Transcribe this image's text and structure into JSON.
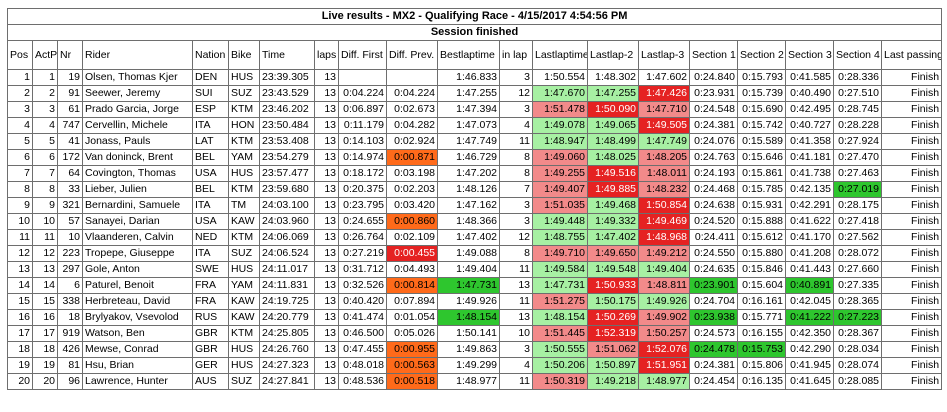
{
  "title": "Live results - MX2 - Qualifying Race - 4/15/2017 4:54:56 PM",
  "status": "Session finished",
  "columns": [
    "Pos",
    "ActP",
    "Nr",
    "Rider",
    "Nation",
    "Bike",
    "Time",
    "laps",
    "Diff. First",
    "Diff. Prev.",
    "Bestlaptime",
    "in lap",
    "Lastlaptime",
    "Lastlap-2",
    "Lastlap-3",
    "Section 1",
    "Section 2",
    "Section 3",
    "Section 4",
    "Last passing"
  ],
  "colors": {
    "light_green": "#a7f0a3",
    "dark_green": "#2ec62e",
    "light_red": "#f28a8a",
    "dark_red": "#e52222",
    "orange": "#ff6a1a",
    "border": "#6e6e6e"
  },
  "rows": [
    {
      "pos": "1",
      "actp": "1",
      "nr": "19",
      "rider": "Olsen, Thomas Kjer",
      "nation": "DEN",
      "bike": "HUS",
      "time": "23:39.305",
      "laps": "13",
      "diff_first": "",
      "diff_prev": "",
      "bestlap": "1:46.833",
      "inlap": "3",
      "lastlap": "1:50.554",
      "lastlap2": "1:48.302",
      "lastlap3": "1:47.602",
      "s1": "0:24.840",
      "s2": "0:15.793",
      "s3": "0:41.585",
      "s4": "0:28.336",
      "last": "Finish",
      "hl": {}
    },
    {
      "pos": "2",
      "actp": "2",
      "nr": "91",
      "rider": "Seewer, Jeremy",
      "nation": "SUI",
      "bike": "SUZ",
      "time": "23:43.529",
      "laps": "13",
      "diff_first": "0:04.224",
      "diff_prev": "0:04.224",
      "bestlap": "1:47.255",
      "inlap": "12",
      "lastlap": "1:47.670",
      "lastlap2": "1:47.255",
      "lastlap3": "1:47.426",
      "s1": "0:23.931",
      "s2": "0:15.739",
      "s3": "0:40.490",
      "s4": "0:27.510",
      "last": "Finish",
      "hl": {
        "lastlap": "lg",
        "lastlap2": "lg",
        "lastlap3": "dr"
      }
    },
    {
      "pos": "3",
      "actp": "3",
      "nr": "61",
      "rider": "Prado Garcia, Jorge",
      "nation": "ESP",
      "bike": "KTM",
      "time": "23:46.202",
      "laps": "13",
      "diff_first": "0:06.897",
      "diff_prev": "0:02.673",
      "bestlap": "1:47.394",
      "inlap": "3",
      "lastlap": "1:51.478",
      "lastlap2": "1:50.090",
      "lastlap3": "1:47.710",
      "s1": "0:24.548",
      "s2": "0:15.690",
      "s3": "0:42.495",
      "s4": "0:28.745",
      "last": "Finish",
      "hl": {
        "lastlap": "lr",
        "lastlap2": "dr",
        "lastlap3": "lr"
      }
    },
    {
      "pos": "4",
      "actp": "4",
      "nr": "747",
      "rider": "Cervellin, Michele",
      "nation": "ITA",
      "bike": "HON",
      "time": "23:50.484",
      "laps": "13",
      "diff_first": "0:11.179",
      "diff_prev": "0:04.282",
      "bestlap": "1:47.073",
      "inlap": "4",
      "lastlap": "1:49.078",
      "lastlap2": "1:49.065",
      "lastlap3": "1:49.505",
      "s1": "0:24.381",
      "s2": "0:15.742",
      "s3": "0:40.727",
      "s4": "0:28.228",
      "last": "Finish",
      "hl": {
        "lastlap": "lg",
        "lastlap2": "lg",
        "lastlap3": "dr"
      }
    },
    {
      "pos": "5",
      "actp": "5",
      "nr": "41",
      "rider": "Jonass, Pauls",
      "nation": "LAT",
      "bike": "KTM",
      "time": "23:53.408",
      "laps": "13",
      "diff_first": "0:14.103",
      "diff_prev": "0:02.924",
      "bestlap": "1:47.749",
      "inlap": "11",
      "lastlap": "1:48.947",
      "lastlap2": "1:48.499",
      "lastlap3": "1:47.749",
      "s1": "0:24.076",
      "s2": "0:15.589",
      "s3": "0:41.358",
      "s4": "0:27.924",
      "last": "Finish",
      "hl": {
        "lastlap": "lg",
        "lastlap2": "lg",
        "lastlap3": "lg"
      }
    },
    {
      "pos": "6",
      "actp": "6",
      "nr": "172",
      "rider": "Van doninck, Brent",
      "nation": "BEL",
      "bike": "YAM",
      "time": "23:54.279",
      "laps": "13",
      "diff_first": "0:14.974",
      "diff_prev": "0:00.871",
      "bestlap": "1:46.729",
      "inlap": "8",
      "lastlap": "1:49.060",
      "lastlap2": "1:48.025",
      "lastlap3": "1:48.205",
      "s1": "0:24.763",
      "s2": "0:15.646",
      "s3": "0:41.181",
      "s4": "0:27.470",
      "last": "Finish",
      "hl": {
        "diff_prev": "or",
        "lastlap": "lr",
        "lastlap2": "lg",
        "lastlap3": "lr"
      }
    },
    {
      "pos": "7",
      "actp": "7",
      "nr": "64",
      "rider": "Covington, Thomas",
      "nation": "USA",
      "bike": "HUS",
      "time": "23:57.477",
      "laps": "13",
      "diff_first": "0:18.172",
      "diff_prev": "0:03.198",
      "bestlap": "1:47.202",
      "inlap": "8",
      "lastlap": "1:49.255",
      "lastlap2": "1:49.516",
      "lastlap3": "1:48.011",
      "s1": "0:24.193",
      "s2": "0:15.861",
      "s3": "0:41.738",
      "s4": "0:27.463",
      "last": "Finish",
      "hl": {
        "lastlap": "lr",
        "lastlap2": "dr",
        "lastlap3": "lr"
      }
    },
    {
      "pos": "8",
      "actp": "8",
      "nr": "33",
      "rider": "Lieber, Julien",
      "nation": "BEL",
      "bike": "KTM",
      "time": "23:59.680",
      "laps": "13",
      "diff_first": "0:20.375",
      "diff_prev": "0:02.203",
      "bestlap": "1:48.126",
      "inlap": "7",
      "lastlap": "1:49.407",
      "lastlap2": "1:49.885",
      "lastlap3": "1:48.232",
      "s1": "0:24.468",
      "s2": "0:15.785",
      "s3": "0:42.135",
      "s4": "0:27.019",
      "last": "Finish",
      "hl": {
        "lastlap": "lr",
        "lastlap2": "dr",
        "lastlap3": "lr",
        "s4": "dg"
      }
    },
    {
      "pos": "9",
      "actp": "9",
      "nr": "321",
      "rider": "Bernardini, Samuele",
      "nation": "ITA",
      "bike": "TM",
      "time": "24:03.100",
      "laps": "13",
      "diff_first": "0:23.795",
      "diff_prev": "0:03.420",
      "bestlap": "1:47.162",
      "inlap": "3",
      "lastlap": "1:51.035",
      "lastlap2": "1:49.468",
      "lastlap3": "1:50.854",
      "s1": "0:24.638",
      "s2": "0:15.931",
      "s3": "0:42.291",
      "s4": "0:28.175",
      "last": "Finish",
      "hl": {
        "lastlap": "lr",
        "lastlap2": "lg",
        "lastlap3": "dr"
      }
    },
    {
      "pos": "10",
      "actp": "10",
      "nr": "57",
      "rider": "Sanayei, Darian",
      "nation": "USA",
      "bike": "KAW",
      "time": "24:03.960",
      "laps": "13",
      "diff_first": "0:24.655",
      "diff_prev": "0:00.860",
      "bestlap": "1:48.366",
      "inlap": "3",
      "lastlap": "1:49.448",
      "lastlap2": "1:49.332",
      "lastlap3": "1:49.469",
      "s1": "0:24.520",
      "s2": "0:15.888",
      "s3": "0:41.622",
      "s4": "0:27.418",
      "last": "Finish",
      "hl": {
        "diff_prev": "or",
        "lastlap": "lg",
        "lastlap2": "lg",
        "lastlap3": "dr"
      }
    },
    {
      "pos": "11",
      "actp": "11",
      "nr": "10",
      "rider": "Vlaanderen, Calvin",
      "nation": "NED",
      "bike": "KTM",
      "time": "24:06.069",
      "laps": "13",
      "diff_first": "0:26.764",
      "diff_prev": "0:02.109",
      "bestlap": "1:47.402",
      "inlap": "12",
      "lastlap": "1:48.755",
      "lastlap2": "1:47.402",
      "lastlap3": "1:48.968",
      "s1": "0:24.411",
      "s2": "0:15.612",
      "s3": "0:41.170",
      "s4": "0:27.562",
      "last": "Finish",
      "hl": {
        "lastlap": "lg",
        "lastlap2": "lg",
        "lastlap3": "dr"
      }
    },
    {
      "pos": "12",
      "actp": "12",
      "nr": "223",
      "rider": "Tropepe, Giuseppe",
      "nation": "ITA",
      "bike": "SUZ",
      "time": "24:06.524",
      "laps": "13",
      "diff_first": "0:27.219",
      "diff_prev": "0:00.455",
      "bestlap": "1:49.088",
      "inlap": "8",
      "lastlap": "1:49.710",
      "lastlap2": "1:49.650",
      "lastlap3": "1:49.212",
      "s1": "0:24.550",
      "s2": "0:15.880",
      "s3": "0:41.208",
      "s4": "0:28.072",
      "last": "Finish",
      "hl": {
        "diff_prev": "dr",
        "lastlap": "lr",
        "lastlap2": "lr",
        "lastlap3": "lr"
      }
    },
    {
      "pos": "13",
      "actp": "13",
      "nr": "297",
      "rider": "Gole, Anton",
      "nation": "SWE",
      "bike": "HUS",
      "time": "24:11.017",
      "laps": "13",
      "diff_first": "0:31.712",
      "diff_prev": "0:04.493",
      "bestlap": "1:49.404",
      "inlap": "11",
      "lastlap": "1:49.584",
      "lastlap2": "1:49.548",
      "lastlap3": "1:49.404",
      "s1": "0:24.635",
      "s2": "0:15.846",
      "s3": "0:41.443",
      "s4": "0:27.660",
      "last": "Finish",
      "hl": {
        "lastlap": "lg",
        "lastlap2": "lg",
        "lastlap3": "lg"
      }
    },
    {
      "pos": "14",
      "actp": "14",
      "nr": "6",
      "rider": "Paturel, Benoit",
      "nation": "FRA",
      "bike": "YAM",
      "time": "24:11.831",
      "laps": "13",
      "diff_first": "0:32.526",
      "diff_prev": "0:00.814",
      "bestlap": "1:47.731",
      "inlap": "13",
      "lastlap": "1:47.731",
      "lastlap2": "1:50.933",
      "lastlap3": "1:48.811",
      "s1": "0:23.901",
      "s2": "0:15.604",
      "s3": "0:40.891",
      "s4": "0:27.335",
      "last": "Finish",
      "hl": {
        "diff_prev": "or",
        "bestlap": "dg",
        "lastlap": "lg",
        "lastlap2": "dr",
        "lastlap3": "lr",
        "s1": "dg",
        "s3": "dg"
      }
    },
    {
      "pos": "15",
      "actp": "15",
      "nr": "338",
      "rider": "Herbreteau, David",
      "nation": "FRA",
      "bike": "KAW",
      "time": "24:19.725",
      "laps": "13",
      "diff_first": "0:40.420",
      "diff_prev": "0:07.894",
      "bestlap": "1:49.926",
      "inlap": "11",
      "lastlap": "1:51.275",
      "lastlap2": "1:50.175",
      "lastlap3": "1:49.926",
      "s1": "0:24.704",
      "s2": "0:16.161",
      "s3": "0:42.045",
      "s4": "0:28.365",
      "last": "Finish",
      "hl": {
        "lastlap": "lr",
        "lastlap2": "lg",
        "lastlap3": "lg"
      }
    },
    {
      "pos": "16",
      "actp": "16",
      "nr": "18",
      "rider": "Brylyakov, Vsevolod",
      "nation": "RUS",
      "bike": "KAW",
      "time": "24:20.779",
      "laps": "13",
      "diff_first": "0:41.474",
      "diff_prev": "0:01.054",
      "bestlap": "1:48.154",
      "inlap": "13",
      "lastlap": "1:48.154",
      "lastlap2": "1:50.269",
      "lastlap3": "1:49.902",
      "s1": "0:23.938",
      "s2": "0:15.771",
      "s3": "0:41.222",
      "s4": "0:27.223",
      "last": "Finish",
      "hl": {
        "bestlap": "dg",
        "lastlap": "lg",
        "lastlap2": "dr",
        "lastlap3": "lr",
        "s1": "dg",
        "s3": "dg",
        "s4": "dg"
      }
    },
    {
      "pos": "17",
      "actp": "17",
      "nr": "919",
      "rider": "Watson, Ben",
      "nation": "GBR",
      "bike": "KTM",
      "time": "24:25.805",
      "laps": "13",
      "diff_first": "0:46.500",
      "diff_prev": "0:05.026",
      "bestlap": "1:50.141",
      "inlap": "10",
      "lastlap": "1:51.445",
      "lastlap2": "1:52.319",
      "lastlap3": "1:50.257",
      "s1": "0:24.573",
      "s2": "0:16.155",
      "s3": "0:42.350",
      "s4": "0:28.367",
      "last": "Finish",
      "hl": {
        "lastlap": "lr",
        "lastlap2": "dr",
        "lastlap3": "lr"
      }
    },
    {
      "pos": "18",
      "actp": "18",
      "nr": "426",
      "rider": "Mewse, Conrad",
      "nation": "GBR",
      "bike": "HUS",
      "time": "24:26.760",
      "laps": "13",
      "diff_first": "0:47.455",
      "diff_prev": "0:00.955",
      "bestlap": "1:49.863",
      "inlap": "3",
      "lastlap": "1:50.555",
      "lastlap2": "1:51.062",
      "lastlap3": "1:52.076",
      "s1": "0:24.478",
      "s2": "0:15.753",
      "s3": "0:42.290",
      "s4": "0:28.034",
      "last": "Finish",
      "hl": {
        "diff_prev": "or",
        "lastlap": "lg",
        "lastlap2": "lr",
        "lastlap3": "dr",
        "s1": "dg",
        "s2": "dg"
      }
    },
    {
      "pos": "19",
      "actp": "19",
      "nr": "81",
      "rider": "Hsu, Brian",
      "nation": "GER",
      "bike": "HUS",
      "time": "24:27.323",
      "laps": "13",
      "diff_first": "0:48.018",
      "diff_prev": "0:00.563",
      "bestlap": "1:49.299",
      "inlap": "4",
      "lastlap": "1:50.206",
      "lastlap2": "1:50.897",
      "lastlap3": "1:51.951",
      "s1": "0:24.381",
      "s2": "0:15.806",
      "s3": "0:41.945",
      "s4": "0:28.074",
      "last": "Finish",
      "hl": {
        "diff_prev": "or",
        "lastlap": "lg",
        "lastlap2": "lg",
        "lastlap3": "dr"
      }
    },
    {
      "pos": "20",
      "actp": "20",
      "nr": "96",
      "rider": "Lawrence, Hunter",
      "nation": "AUS",
      "bike": "SUZ",
      "time": "24:27.841",
      "laps": "13",
      "diff_first": "0:48.536",
      "diff_prev": "0:00.518",
      "bestlap": "1:48.977",
      "inlap": "11",
      "lastlap": "1:50.319",
      "lastlap2": "1:49.218",
      "lastlap3": "1:48.977",
      "s1": "0:24.454",
      "s2": "0:16.135",
      "s3": "0:41.645",
      "s4": "0:28.085",
      "last": "Finish",
      "hl": {
        "diff_prev": "or",
        "lastlap": "lr",
        "lastlap2": "lg",
        "lastlap3": "lg"
      }
    }
  ]
}
